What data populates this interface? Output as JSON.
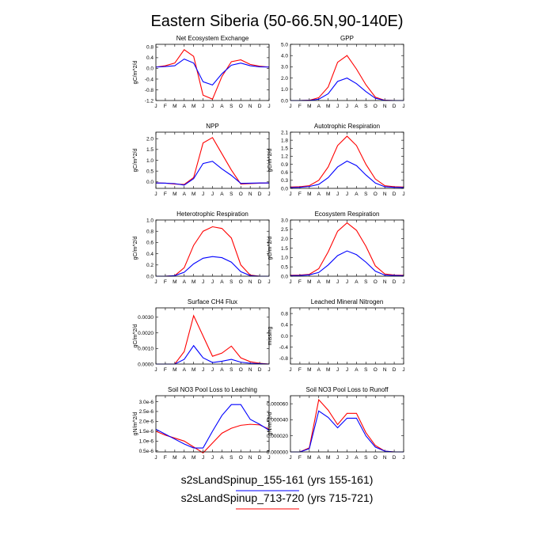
{
  "figure_title": "Eastern Siberia (50-66.5N,90-140E)",
  "colors": {
    "series1": "#ff0000",
    "series2": "#0000ff",
    "axis": "#000000"
  },
  "legend": [
    {
      "label": "s2sLandSpinup_155-161 (yrs 155-161)",
      "color": "#0000ff"
    },
    {
      "label": "s2sLandSpinup_713-720 (yrs 715-721)",
      "color": "#ff0000"
    }
  ],
  "months": [
    "J",
    "F",
    "M",
    "A",
    "M",
    "J",
    "J",
    "A",
    "S",
    "O",
    "N",
    "D",
    "J"
  ],
  "chart_data": [
    {
      "type": "line",
      "title": "Net Ecosystem Exchange",
      "ylabel": "gC/m^2/d",
      "ylim": [
        -1.2,
        0.9
      ],
      "yticks": [
        "0.8",
        "0.4",
        "0.0",
        "-0.4",
        "-0.8",
        "-1.2"
      ],
      "series": [
        {
          "values": [
            0.05,
            0.1,
            0.2,
            0.7,
            0.45,
            -1.0,
            -1.15,
            -0.3,
            0.25,
            0.32,
            0.15,
            0.08,
            0.05
          ]
        },
        {
          "values": [
            0.05,
            0.07,
            0.1,
            0.35,
            0.2,
            -0.5,
            -0.62,
            -0.2,
            0.12,
            0.2,
            0.1,
            0.06,
            0.05
          ]
        }
      ]
    },
    {
      "type": "line",
      "title": "GPP",
      "ylabel": "",
      "ylim": [
        0,
        5
      ],
      "yticks": [
        "5.0",
        "4.0",
        "3.0",
        "2.0",
        "1.0",
        "0.0"
      ],
      "series": [
        {
          "values": [
            0,
            0,
            0.02,
            0.25,
            1.2,
            3.4,
            4.0,
            2.8,
            1.4,
            0.3,
            0.02,
            0,
            0
          ]
        },
        {
          "values": [
            0,
            0,
            0.01,
            0.12,
            0.6,
            1.7,
            2.0,
            1.5,
            0.8,
            0.2,
            0.01,
            0,
            0
          ]
        }
      ]
    },
    {
      "type": "line",
      "title": "NPP",
      "ylabel": "gC/m^2/d",
      "ylim": [
        -0.3,
        2.3
      ],
      "yticks": [
        "2.0",
        "1.5",
        "1.0",
        "0.5",
        "0.0"
      ],
      "series": [
        {
          "values": [
            -0.05,
            -0.06,
            -0.1,
            -0.12,
            0.2,
            1.8,
            2.05,
            1.3,
            0.55,
            -0.1,
            -0.08,
            -0.06,
            -0.05
          ]
        },
        {
          "values": [
            -0.05,
            -0.06,
            -0.08,
            -0.15,
            0.15,
            0.85,
            0.95,
            0.6,
            0.3,
            -0.07,
            -0.06,
            -0.05,
            -0.05
          ]
        }
      ]
    },
    {
      "type": "line",
      "title": "Autotrophic Respiration",
      "ylabel": "gC/m^2/d",
      "ylim": [
        0,
        2.1
      ],
      "yticks": [
        "2.1",
        "1.8",
        "1.5",
        "1.2",
        "0.9",
        "0.6",
        "0.3",
        "0.0"
      ],
      "series": [
        {
          "values": [
            0.05,
            0.06,
            0.1,
            0.3,
            0.8,
            1.6,
            1.95,
            1.6,
            0.9,
            0.35,
            0.1,
            0.06,
            0.05
          ]
        },
        {
          "values": [
            0.03,
            0.04,
            0.07,
            0.15,
            0.4,
            0.8,
            1.02,
            0.85,
            0.5,
            0.2,
            0.06,
            0.04,
            0.03
          ]
        }
      ]
    },
    {
      "type": "line",
      "title": "Heterotrophic Respiration",
      "ylabel": "gC/m^2/d",
      "ylim": [
        0,
        1
      ],
      "yticks": [
        "1.0",
        "0.8",
        "0.6",
        "0.4",
        "0.2",
        "0.0"
      ],
      "series": [
        {
          "values": [
            0,
            0,
            0.01,
            0.15,
            0.55,
            0.8,
            0.88,
            0.85,
            0.68,
            0.2,
            0.02,
            0,
            0
          ]
        },
        {
          "values": [
            0,
            0,
            0.01,
            0.07,
            0.22,
            0.32,
            0.35,
            0.33,
            0.25,
            0.08,
            0.01,
            0,
            0
          ]
        }
      ]
    },
    {
      "type": "line",
      "title": "Ecosystem Respiration",
      "ylabel": "gC/m^2/d",
      "ylim": [
        0,
        3
      ],
      "yticks": [
        "3.0",
        "2.5",
        "2.0",
        "1.5",
        "1.0",
        "0.5",
        "0.0"
      ],
      "series": [
        {
          "values": [
            0.05,
            0.06,
            0.1,
            0.4,
            1.3,
            2.4,
            2.85,
            2.45,
            1.6,
            0.55,
            0.12,
            0.06,
            0.05
          ]
        },
        {
          "values": [
            0.03,
            0.04,
            0.07,
            0.2,
            0.6,
            1.1,
            1.35,
            1.15,
            0.75,
            0.27,
            0.06,
            0.04,
            0.03
          ]
        }
      ]
    },
    {
      "type": "line",
      "title": "Surface CH4 Flux",
      "ylabel": "gC/m^2/d",
      "ylim": [
        0,
        0.0036
      ],
      "yticks": [
        "0.0030",
        "0.0020",
        "0.0010",
        "0.0000"
      ],
      "series": [
        {
          "values": [
            0,
            0,
            0,
            0.0008,
            0.0031,
            0.0018,
            0.0005,
            0.0007,
            0.00115,
            0.0004,
            0.00015,
            5e-05,
            0
          ]
        },
        {
          "values": [
            0,
            0,
            0,
            0.0003,
            0.00118,
            0.0004,
            0.0001,
            0.00018,
            0.0003,
            0.00012,
            5e-05,
            2e-05,
            0
          ]
        }
      ]
    },
    {
      "type": "line",
      "title": "Leached Mineral Nitrogen",
      "ylabel": "missing",
      "ylim": [
        -1,
        1
      ],
      "yticks": [
        "0.8",
        "0.4",
        "0.0",
        "-0.4",
        "-0.8"
      ],
      "series": []
    },
    {
      "type": "line",
      "title": "Soil NO3 Pool Loss to Leaching",
      "ylabel": "gN/m^2/d",
      "ylim": [
        4.5e-07,
        3.3e-06
      ],
      "yticks": [
        "3.0e-6",
        "2.5e-6",
        "2.0e-6",
        "1.5e-6",
        "1.0e-6",
        "0.5e-6"
      ],
      "series": [
        {
          "values": [
            1.5e-06,
            1.3e-06,
            1.15e-06,
            1e-06,
            7e-07,
            4e-07,
            9e-07,
            1.4e-06,
            1.65e-06,
            1.8e-06,
            1.85e-06,
            1.82e-06,
            1.6e-06
          ]
        },
        {
          "values": [
            1.6e-06,
            1.35e-06,
            1.1e-06,
            8.5e-07,
            6.5e-07,
            6.5e-07,
            1.5e-06,
            2.3e-06,
            2.85e-06,
            2.85e-06,
            2.1e-06,
            1.85e-06,
            1.55e-06
          ]
        }
      ]
    },
    {
      "type": "line",
      "title": "Soil NO3 Pool Loss to Runoff",
      "ylabel": "gN/m^2/d",
      "ylim": [
        0,
        7e-05
      ],
      "yticks": [
        "0.000060",
        "0.000040",
        "0.000020",
        "0.000000"
      ],
      "series": [
        {
          "values": [
            0,
            0,
            5e-06,
            6.5e-05,
            5.2e-05,
            3.4e-05,
            4.8e-05,
            4.8e-05,
            2.4e-05,
            8e-06,
            1e-06,
            0,
            0
          ]
        },
        {
          "values": [
            0,
            0,
            4e-06,
            5.1e-05,
            4.3e-05,
            3e-05,
            4.2e-05,
            4.2e-05,
            2e-05,
            6e-06,
            1e-06,
            0,
            0
          ]
        }
      ]
    }
  ]
}
